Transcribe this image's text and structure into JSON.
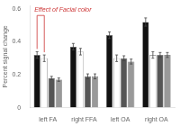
{
  "chart_data": {
    "type": "bar",
    "categories": [
      "left FA",
      "right FFA",
      "left OA",
      "right OA"
    ],
    "series": [
      {
        "color": "#111111",
        "values": [
          0.32,
          0.37,
          0.44,
          0.52
        ],
        "errors": [
          0.02,
          0.02,
          0.02,
          0.025
        ]
      },
      {
        "color": "#ffffff",
        "values": [
          0.3,
          0.34,
          0.3,
          0.32
        ],
        "errors": [
          0.02,
          0.02,
          0.02,
          0.02
        ]
      },
      {
        "color": "#555555",
        "values": [
          0.18,
          0.19,
          0.3,
          0.32
        ],
        "errors": [
          0.01,
          0.015,
          0.015,
          0.015
        ]
      },
      {
        "color": "#999999",
        "values": [
          0.17,
          0.19,
          0.28,
          0.32
        ],
        "errors": [
          0.01,
          0.015,
          0.015,
          0.015
        ]
      }
    ],
    "ylabel": "Percent signal change",
    "ylim": [
      0,
      0.62
    ],
    "yticks": [
      0,
      0.2,
      0.4,
      0.6
    ],
    "grid": false,
    "annotations": [
      {
        "text": "Effect of Facial color",
        "color": "#cc3333"
      }
    ]
  }
}
